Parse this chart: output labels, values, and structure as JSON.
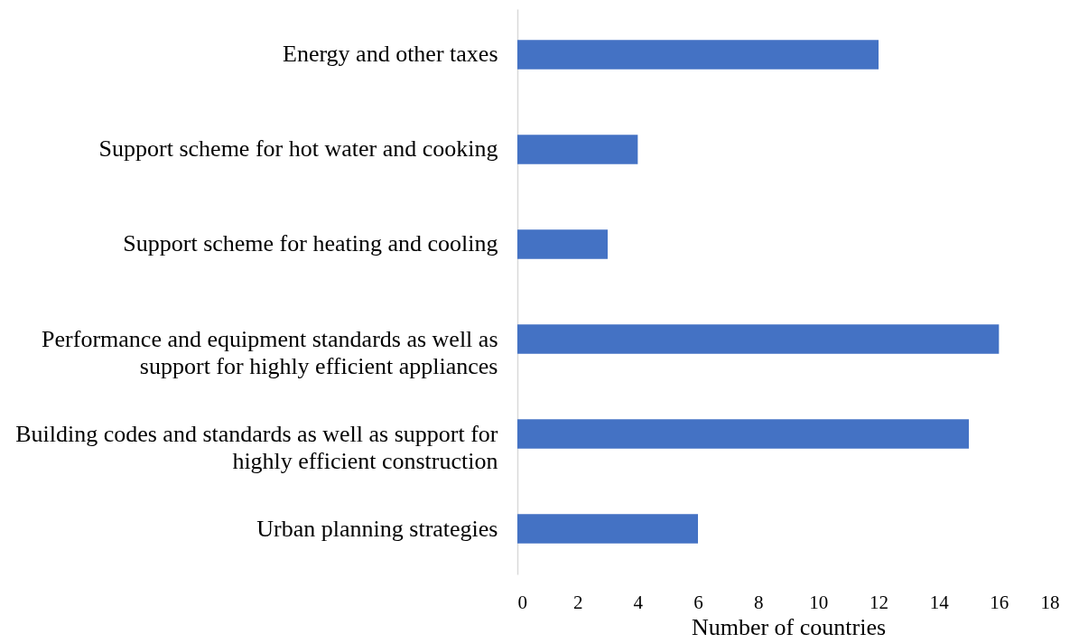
{
  "chart_data": {
    "type": "bar",
    "orientation": "horizontal",
    "categories": [
      "Energy and other taxes",
      "Support scheme for hot water and cooking",
      "Support scheme for heating and cooling",
      "Performance and equipment standards as well as support for highly efficient appliances",
      "Building codes and standards as well as support for highly efficient construction",
      "Urban planning strategies"
    ],
    "values": [
      12,
      4,
      3,
      16,
      15,
      6
    ],
    "color": "#4472c4",
    "xlabel": "Number of countries",
    "xlim": [
      0,
      18
    ],
    "xticks": [
      0,
      2,
      4,
      6,
      8,
      10,
      12,
      14,
      16,
      18
    ]
  }
}
